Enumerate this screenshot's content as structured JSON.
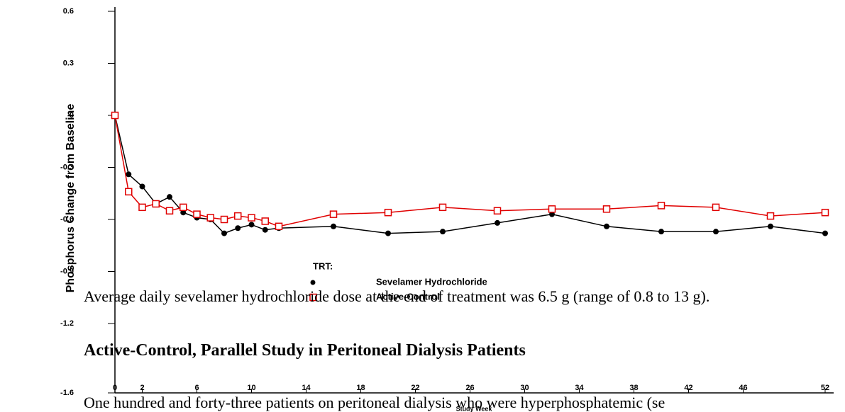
{
  "chart_data": {
    "type": "line",
    "y_label": "Phosphorus Change from Baseline",
    "x_label": "Study Week",
    "legend_title": "TRT:",
    "x": [
      0,
      1,
      2,
      3,
      4,
      5,
      6,
      7,
      8,
      9,
      10,
      11,
      12,
      16,
      20,
      24,
      28,
      32,
      36,
      40,
      44,
      48,
      52
    ],
    "xlim": [
      0,
      52
    ],
    "xticks": [
      0,
      2,
      6,
      10,
      14,
      18,
      22,
      26,
      30,
      34,
      38,
      42,
      46,
      52
    ],
    "ylim": [
      -1.6,
      0.6
    ],
    "yticks": [
      0.6,
      0.3,
      0,
      -0.3,
      -0.6,
      -0.9,
      -1.2,
      -1.6
    ],
    "series": [
      {
        "name": "Sevelamer Hydrochloride",
        "color": "#000000",
        "marker": "circle",
        "values": [
          0,
          -0.34,
          -0.41,
          -0.51,
          -0.47,
          -0.56,
          -0.59,
          -0.6,
          -0.68,
          -0.65,
          -0.63,
          -0.66,
          -0.65,
          -0.64,
          -0.68,
          -0.67,
          -0.62,
          -0.57,
          -0.64,
          -0.67,
          -0.67,
          -0.64,
          -0.68
        ]
      },
      {
        "name": "Active-Control",
        "color": "#e00000",
        "marker": "square",
        "values": [
          0,
          -0.44,
          -0.53,
          -0.51,
          -0.55,
          -0.53,
          -0.57,
          -0.59,
          -0.6,
          -0.58,
          -0.59,
          -0.61,
          -0.64,
          -0.57,
          -0.56,
          -0.53,
          -0.55,
          -0.54,
          -0.54,
          -0.52,
          -0.53,
          -0.58,
          -0.56
        ]
      }
    ]
  },
  "document": {
    "paragraph1": "Average daily sevelamer hydrochloride dose at the end of treatment was 6.5 g (range of 0.8 to 13 g).",
    "heading": "Active-Control, Parallel Study in Peritoneal Dialysis Patients",
    "paragraph2": "One hundred and forty-three patients on peritoneal dialysis who were hyperphosphatemic (se"
  }
}
